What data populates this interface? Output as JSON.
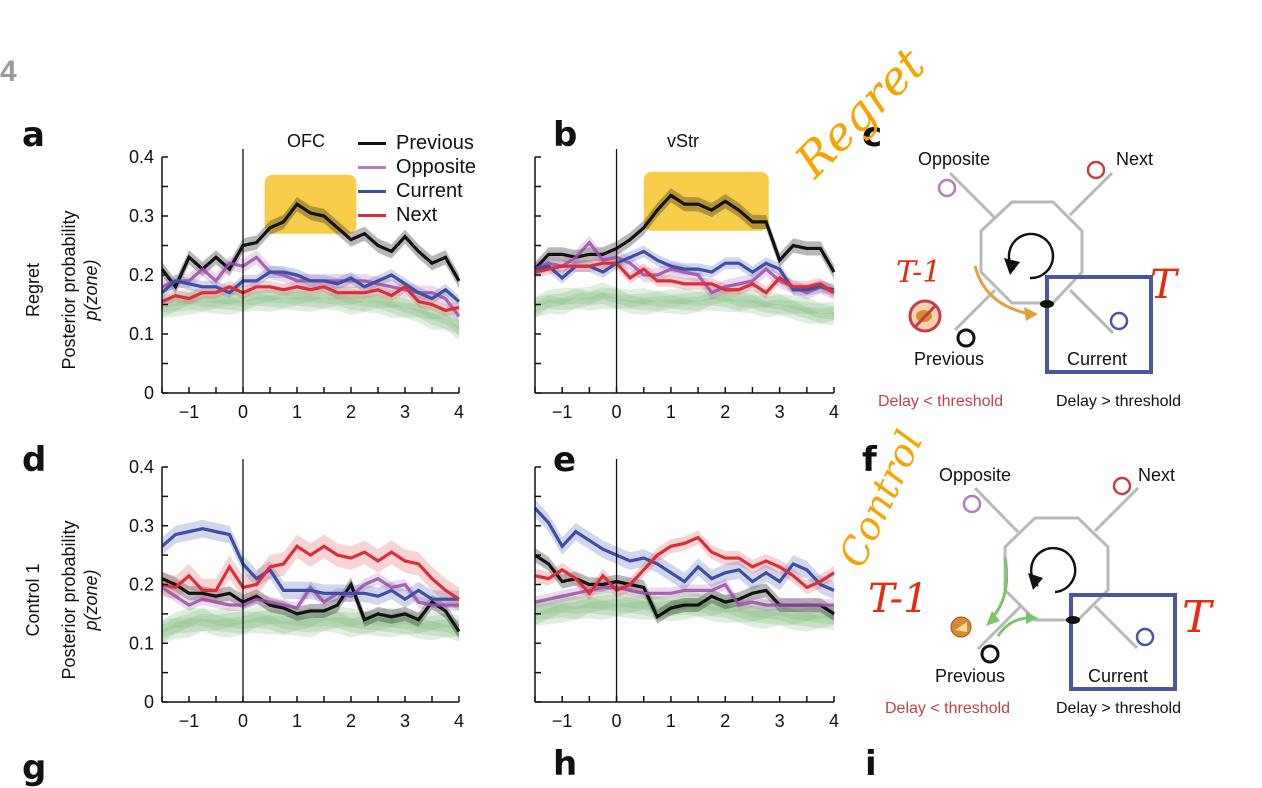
{
  "figure": {
    "number": "4",
    "colors": {
      "previous": "#111111",
      "opposite": "#9b4fa8",
      "current": "#3d4fa3",
      "next": "#d8303a",
      "other_zones": "#6cb36a",
      "highlight": "#f7c42a",
      "annotation_orange": "#f7a400",
      "annotation_red": "#e82a10",
      "maze_gray": "#b8b8b8",
      "box_blue": "#4a55a5",
      "delay_lt_red": "#c2404a"
    }
  },
  "legend": {
    "items": [
      {
        "label": "Previous",
        "key": "previous"
      },
      {
        "label": "Opposite",
        "key": "opposite"
      },
      {
        "label": "Current",
        "key": "current"
      },
      {
        "label": "Next",
        "key": "next"
      }
    ]
  },
  "rows": [
    {
      "label": "Regret",
      "ylabel_line1": "Posterior probability",
      "ylabel_line2": "p(zone)"
    },
    {
      "label": "Control 1",
      "ylabel_line1": "Posterior probability",
      "ylabel_line2": "p(zone)"
    }
  ],
  "diagrams": [
    {
      "letter": "c",
      "zone_labels": {
        "opposite": "Opposite",
        "next": "Next",
        "previous": "Previous",
        "current": "Current"
      },
      "delay_lt": "Delay < threshold",
      "delay_gt": "Delay > threshold",
      "handwritten_title": "Regret",
      "handwritten_prev": "T-1",
      "handwritten_curr": "T",
      "reward_icon": "crossed-out-food-icon",
      "arrow_color_key": "highlight"
    },
    {
      "letter": "f",
      "zone_labels": {
        "opposite": "Opposite",
        "next": "Next",
        "previous": "Previous",
        "current": "Current"
      },
      "delay_lt": "Delay < threshold",
      "delay_gt": "Delay > threshold",
      "handwritten_title": "Control",
      "handwritten_prev": "T-1",
      "handwritten_curr": "T",
      "reward_icon": "food-pellet-icon",
      "arrow_color_key": "other_zones"
    }
  ],
  "next_row_letters": [
    "g",
    "h",
    "i"
  ],
  "chart_data": [
    {
      "panel": "a",
      "type": "line",
      "title": "OFC",
      "xlabel": "",
      "ylabel": "Posterior probability p(zone)",
      "xlim": [
        -1.5,
        4
      ],
      "ylim": [
        0,
        0.4
      ],
      "xticks": [
        -1,
        0,
        1,
        2,
        3,
        4
      ],
      "xtick_labels": [
        "−1",
        "0",
        "1",
        "2",
        "3",
        "4"
      ],
      "yticks": [
        0,
        0.1,
        0.2,
        0.3,
        0.4
      ],
      "ytick_labels": [
        "0",
        "0.1",
        "0.2",
        "0.3",
        "0.4"
      ],
      "show_yticklabels": true,
      "vline_at": 0,
      "highlight": {
        "x0": 0.4,
        "x1": 2.1,
        "y0": 0.27,
        "y1": 0.37
      },
      "x": [
        -1.5,
        -1.25,
        -1,
        -0.75,
        -0.5,
        -0.25,
        0,
        0.25,
        0.5,
        0.75,
        1,
        1.25,
        1.5,
        1.75,
        2,
        2.25,
        2.5,
        2.75,
        3,
        3.25,
        3.5,
        3.75,
        4
      ],
      "series": [
        {
          "name": "Previous",
          "key": "previous",
          "values": [
            0.21,
            0.18,
            0.23,
            0.21,
            0.23,
            0.21,
            0.25,
            0.255,
            0.28,
            0.29,
            0.32,
            0.305,
            0.3,
            0.28,
            0.26,
            0.27,
            0.25,
            0.24,
            0.265,
            0.24,
            0.22,
            0.23,
            0.19
          ],
          "sem": 0.012
        },
        {
          "name": "Opposite",
          "key": "opposite",
          "values": [
            0.18,
            0.19,
            0.19,
            0.21,
            0.19,
            0.22,
            0.215,
            0.23,
            0.205,
            0.2,
            0.19,
            0.19,
            0.19,
            0.19,
            0.19,
            0.19,
            0.185,
            0.18,
            0.175,
            0.17,
            0.17,
            0.16,
            0.13
          ],
          "sem": 0.012
        },
        {
          "name": "Current",
          "key": "current",
          "values": [
            0.17,
            0.19,
            0.185,
            0.18,
            0.18,
            0.17,
            0.19,
            0.19,
            0.205,
            0.205,
            0.2,
            0.19,
            0.19,
            0.185,
            0.195,
            0.18,
            0.19,
            0.2,
            0.185,
            0.17,
            0.16,
            0.175,
            0.155
          ],
          "sem": 0.01
        },
        {
          "name": "Next",
          "key": "next",
          "values": [
            0.155,
            0.165,
            0.16,
            0.17,
            0.17,
            0.18,
            0.17,
            0.18,
            0.18,
            0.175,
            0.18,
            0.175,
            0.18,
            0.17,
            0.17,
            0.17,
            0.175,
            0.165,
            0.18,
            0.155,
            0.15,
            0.14,
            0.145
          ],
          "sem": 0.01
        }
      ],
      "other_zones": {
        "values": [
          0.145,
          0.15,
          0.155,
          0.155,
          0.155,
          0.155,
          0.155,
          0.16,
          0.16,
          0.16,
          0.16,
          0.16,
          0.16,
          0.16,
          0.155,
          0.155,
          0.155,
          0.15,
          0.145,
          0.14,
          0.13,
          0.125,
          0.11
        ],
        "sem": 0.015
      }
    },
    {
      "panel": "b",
      "type": "line",
      "title": "vStr",
      "xlim": [
        -1.5,
        4
      ],
      "ylim": [
        0,
        0.4
      ],
      "xticks": [
        -1,
        0,
        1,
        2,
        3,
        4
      ],
      "xtick_labels": [
        "−1",
        "0",
        "1",
        "2",
        "3",
        "4"
      ],
      "yticks": [
        0,
        0.05,
        0.1,
        0.15,
        0.2,
        0.25,
        0.3,
        0.35,
        0.4
      ],
      "show_yticklabels": false,
      "vline_at": 0,
      "highlight": {
        "x0": 0.5,
        "x1": 2.8,
        "y0": 0.275,
        "y1": 0.375
      },
      "x": [
        -1.5,
        -1.25,
        -1,
        -0.75,
        -0.5,
        -0.25,
        0,
        0.25,
        0.5,
        0.75,
        1,
        1.25,
        1.5,
        1.75,
        2,
        2.25,
        2.5,
        2.75,
        3,
        3.25,
        3.5,
        3.75,
        4
      ],
      "series": [
        {
          "name": "Previous",
          "key": "previous",
          "values": [
            0.21,
            0.235,
            0.235,
            0.23,
            0.235,
            0.235,
            0.245,
            0.26,
            0.28,
            0.31,
            0.335,
            0.32,
            0.32,
            0.31,
            0.325,
            0.31,
            0.29,
            0.29,
            0.225,
            0.25,
            0.245,
            0.245,
            0.205
          ],
          "sem": 0.012
        },
        {
          "name": "Opposite",
          "key": "opposite",
          "values": [
            0.21,
            0.22,
            0.215,
            0.23,
            0.255,
            0.225,
            0.23,
            0.22,
            0.2,
            0.2,
            0.21,
            0.205,
            0.2,
            0.17,
            0.18,
            0.185,
            0.19,
            0.21,
            0.19,
            0.18,
            0.17,
            0.18,
            0.17
          ],
          "sem": 0.012
        },
        {
          "name": "Current",
          "key": "current",
          "values": [
            0.21,
            0.215,
            0.195,
            0.215,
            0.215,
            0.205,
            0.22,
            0.23,
            0.24,
            0.225,
            0.215,
            0.21,
            0.21,
            0.205,
            0.22,
            0.22,
            0.205,
            0.22,
            0.21,
            0.175,
            0.175,
            0.18,
            0.175
          ],
          "sem": 0.01
        },
        {
          "name": "Next",
          "key": "next",
          "values": [
            0.205,
            0.21,
            0.215,
            0.215,
            0.215,
            0.22,
            0.22,
            0.195,
            0.21,
            0.19,
            0.19,
            0.185,
            0.185,
            0.185,
            0.175,
            0.175,
            0.185,
            0.17,
            0.195,
            0.18,
            0.18,
            0.185,
            0.17
          ],
          "sem": 0.01
        }
      ],
      "other_zones": {
        "values": [
          0.145,
          0.155,
          0.155,
          0.16,
          0.16,
          0.165,
          0.16,
          0.155,
          0.155,
          0.155,
          0.155,
          0.155,
          0.155,
          0.16,
          0.16,
          0.155,
          0.155,
          0.15,
          0.15,
          0.145,
          0.14,
          0.135,
          0.135
        ],
        "sem": 0.015
      }
    },
    {
      "panel": "d",
      "type": "line",
      "title": "",
      "xlim": [
        -1.5,
        4
      ],
      "ylim": [
        0,
        0.4
      ],
      "xticks": [
        -1,
        0,
        1,
        2,
        3,
        4
      ],
      "xtick_labels": [
        "−1",
        "0",
        "1",
        "2",
        "3",
        "4"
      ],
      "yticks": [
        0,
        0.1,
        0.2,
        0.3,
        0.4
      ],
      "ytick_labels": [
        "0",
        "0.1",
        "0.2",
        "0.3",
        "0.4"
      ],
      "show_yticklabels": true,
      "vline_at": 0,
      "x": [
        -1.5,
        -1.25,
        -1,
        -0.75,
        -0.5,
        -0.25,
        0,
        0.25,
        0.5,
        0.75,
        1,
        1.25,
        1.5,
        1.75,
        2,
        2.25,
        2.5,
        2.75,
        3,
        3.25,
        3.5,
        3.75,
        4
      ],
      "series": [
        {
          "name": "Previous",
          "key": "previous",
          "values": [
            0.21,
            0.2,
            0.185,
            0.185,
            0.18,
            0.185,
            0.17,
            0.18,
            0.165,
            0.16,
            0.15,
            0.155,
            0.155,
            0.165,
            0.2,
            0.14,
            0.15,
            0.145,
            0.15,
            0.14,
            0.17,
            0.155,
            0.12
          ],
          "sem": 0.012
        },
        {
          "name": "Opposite",
          "key": "opposite",
          "values": [
            0.195,
            0.18,
            0.165,
            0.175,
            0.17,
            0.165,
            0.165,
            0.175,
            0.17,
            0.165,
            0.16,
            0.195,
            0.17,
            0.185,
            0.18,
            0.2,
            0.21,
            0.195,
            0.2,
            0.17,
            0.165,
            0.165,
            0.165
          ],
          "sem": 0.01
        },
        {
          "name": "Current",
          "key": "current",
          "values": [
            0.265,
            0.285,
            0.29,
            0.295,
            0.29,
            0.285,
            0.235,
            0.21,
            0.225,
            0.19,
            0.19,
            0.19,
            0.185,
            0.185,
            0.185,
            0.185,
            0.18,
            0.19,
            0.175,
            0.19,
            0.175,
            0.175,
            0.175
          ],
          "sem": 0.015
        },
        {
          "name": "Next",
          "key": "next",
          "values": [
            0.2,
            0.195,
            0.215,
            0.19,
            0.19,
            0.23,
            0.195,
            0.2,
            0.23,
            0.235,
            0.265,
            0.25,
            0.265,
            0.25,
            0.245,
            0.255,
            0.24,
            0.255,
            0.24,
            0.235,
            0.21,
            0.19,
            0.175
          ],
          "sem": 0.02
        }
      ],
      "other_zones": {
        "values": [
          0.12,
          0.13,
          0.135,
          0.14,
          0.135,
          0.135,
          0.135,
          0.14,
          0.14,
          0.135,
          0.135,
          0.135,
          0.14,
          0.14,
          0.135,
          0.135,
          0.135,
          0.135,
          0.135,
          0.13,
          0.13,
          0.13,
          0.125
        ],
        "sem": 0.018
      }
    },
    {
      "panel": "e",
      "type": "line",
      "title": "",
      "xlim": [
        -1.5,
        4
      ],
      "ylim": [
        0,
        0.4
      ],
      "xticks": [
        -1,
        0,
        1,
        2,
        3,
        4
      ],
      "xtick_labels": [
        "−1",
        "0",
        "1",
        "2",
        "3",
        "4"
      ],
      "yticks": [
        0,
        0.05,
        0.1,
        0.15,
        0.2,
        0.25,
        0.3,
        0.35,
        0.4
      ],
      "show_yticklabels": false,
      "vline_at": 0,
      "x": [
        -1.5,
        -1.25,
        -1,
        -0.75,
        -0.5,
        -0.25,
        0,
        0.25,
        0.5,
        0.75,
        1,
        1.25,
        1.5,
        1.75,
        2,
        2.25,
        2.5,
        2.75,
        3,
        3.25,
        3.5,
        3.75,
        4
      ],
      "series": [
        {
          "name": "Previous",
          "key": "previous",
          "values": [
            0.25,
            0.235,
            0.205,
            0.21,
            0.2,
            0.2,
            0.205,
            0.2,
            0.195,
            0.145,
            0.16,
            0.165,
            0.165,
            0.18,
            0.17,
            0.175,
            0.185,
            0.19,
            0.165,
            0.165,
            0.165,
            0.165,
            0.15
          ],
          "sem": 0.012
        },
        {
          "name": "Opposite",
          "key": "opposite",
          "values": [
            0.17,
            0.175,
            0.18,
            0.185,
            0.19,
            0.195,
            0.195,
            0.19,
            0.185,
            0.185,
            0.185,
            0.19,
            0.19,
            0.19,
            0.2,
            0.165,
            0.17,
            0.165,
            0.165,
            0.165,
            0.165,
            0.165,
            0.165
          ],
          "sem": 0.01
        },
        {
          "name": "Current",
          "key": "current",
          "values": [
            0.33,
            0.305,
            0.265,
            0.29,
            0.275,
            0.26,
            0.25,
            0.24,
            0.245,
            0.235,
            0.22,
            0.205,
            0.23,
            0.21,
            0.22,
            0.225,
            0.205,
            0.22,
            0.205,
            0.235,
            0.225,
            0.2,
            0.19
          ],
          "sem": 0.015
        },
        {
          "name": "Next",
          "key": "next",
          "values": [
            0.215,
            0.21,
            0.225,
            0.21,
            0.185,
            0.215,
            0.19,
            0.2,
            0.225,
            0.25,
            0.265,
            0.27,
            0.28,
            0.255,
            0.245,
            0.245,
            0.23,
            0.24,
            0.23,
            0.215,
            0.195,
            0.205,
            0.22
          ],
          "sem": 0.012
        }
      ],
      "other_zones": {
        "values": [
          0.15,
          0.155,
          0.16,
          0.16,
          0.165,
          0.165,
          0.165,
          0.165,
          0.165,
          0.16,
          0.16,
          0.165,
          0.165,
          0.16,
          0.16,
          0.155,
          0.15,
          0.15,
          0.15,
          0.145,
          0.145,
          0.145,
          0.145
        ],
        "sem": 0.018
      }
    }
  ]
}
